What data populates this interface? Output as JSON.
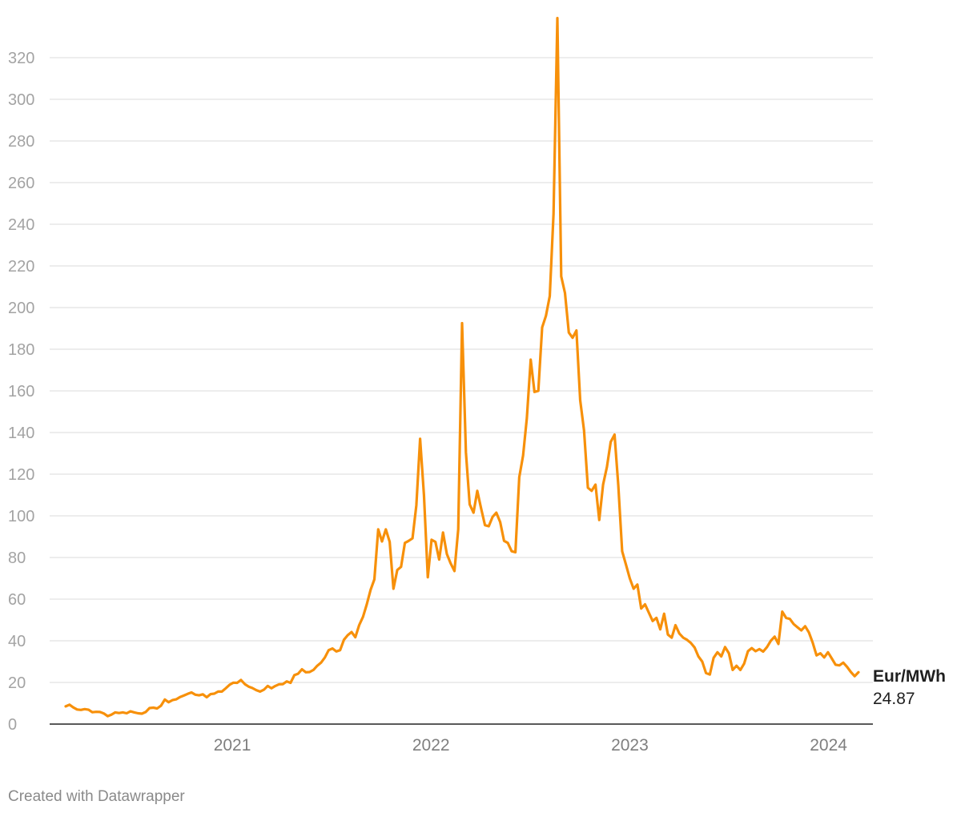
{
  "footer": {
    "credit": "Created with Datawrapper"
  },
  "chart_data": {
    "type": "line",
    "series": [
      {
        "name": "Eur/MWh",
        "color": "#f7900a",
        "last_value_label": "24.87",
        "x": [
          "2020-03-01",
          "2020-03-08",
          "2020-03-15",
          "2020-03-22",
          "2020-03-29",
          "2020-04-05",
          "2020-04-12",
          "2020-04-19",
          "2020-04-26",
          "2020-05-03",
          "2020-05-10",
          "2020-05-17",
          "2020-05-24",
          "2020-05-31",
          "2020-06-07",
          "2020-06-14",
          "2020-06-21",
          "2020-06-28",
          "2020-07-05",
          "2020-07-12",
          "2020-07-19",
          "2020-07-26",
          "2020-08-02",
          "2020-08-09",
          "2020-08-16",
          "2020-08-23",
          "2020-08-30",
          "2020-09-06",
          "2020-09-13",
          "2020-09-20",
          "2020-09-27",
          "2020-10-04",
          "2020-10-11",
          "2020-10-18",
          "2020-10-25",
          "2020-11-01",
          "2020-11-08",
          "2020-11-15",
          "2020-11-22",
          "2020-11-29",
          "2020-12-06",
          "2020-12-13",
          "2020-12-20",
          "2020-12-27",
          "2021-01-03",
          "2021-01-10",
          "2021-01-17",
          "2021-01-24",
          "2021-01-31",
          "2021-02-07",
          "2021-02-14",
          "2021-02-21",
          "2021-02-28",
          "2021-03-07",
          "2021-03-14",
          "2021-03-21",
          "2021-03-28",
          "2021-04-04",
          "2021-04-11",
          "2021-04-18",
          "2021-04-25",
          "2021-05-02",
          "2021-05-09",
          "2021-05-16",
          "2021-05-23",
          "2021-05-30",
          "2021-06-06",
          "2021-06-13",
          "2021-06-20",
          "2021-06-27",
          "2021-07-04",
          "2021-07-11",
          "2021-07-18",
          "2021-07-25",
          "2021-08-01",
          "2021-08-08",
          "2021-08-15",
          "2021-08-22",
          "2021-08-29",
          "2021-09-05",
          "2021-09-12",
          "2021-09-19",
          "2021-09-26",
          "2021-10-03",
          "2021-10-10",
          "2021-10-17",
          "2021-10-24",
          "2021-10-31",
          "2021-11-07",
          "2021-11-14",
          "2021-11-21",
          "2021-11-28",
          "2021-12-05",
          "2021-12-12",
          "2021-12-19",
          "2021-12-26",
          "2022-01-02",
          "2022-01-09",
          "2022-01-16",
          "2022-01-23",
          "2022-01-30",
          "2022-02-06",
          "2022-02-13",
          "2022-02-20",
          "2022-02-27",
          "2022-03-06",
          "2022-03-13",
          "2022-03-20",
          "2022-03-27",
          "2022-04-03",
          "2022-04-10",
          "2022-04-17",
          "2022-04-24",
          "2022-05-01",
          "2022-05-08",
          "2022-05-15",
          "2022-05-22",
          "2022-05-29",
          "2022-06-05",
          "2022-06-12",
          "2022-06-19",
          "2022-06-26",
          "2022-07-03",
          "2022-07-10",
          "2022-07-17",
          "2022-07-24",
          "2022-07-31",
          "2022-08-07",
          "2022-08-14",
          "2022-08-21",
          "2022-08-28",
          "2022-09-04",
          "2022-09-11",
          "2022-09-18",
          "2022-09-25",
          "2022-10-02",
          "2022-10-09",
          "2022-10-16",
          "2022-10-23",
          "2022-10-30",
          "2022-11-06",
          "2022-11-13",
          "2022-11-20",
          "2022-11-27",
          "2022-12-04",
          "2022-12-11",
          "2022-12-18",
          "2022-12-25",
          "2023-01-01",
          "2023-01-08",
          "2023-01-15",
          "2023-01-22",
          "2023-01-29",
          "2023-02-05",
          "2023-02-12",
          "2023-02-19",
          "2023-02-26",
          "2023-03-05",
          "2023-03-12",
          "2023-03-19",
          "2023-03-26",
          "2023-04-02",
          "2023-04-09",
          "2023-04-16",
          "2023-04-23",
          "2023-04-30",
          "2023-05-07",
          "2023-05-14",
          "2023-05-21",
          "2023-05-28",
          "2023-06-04",
          "2023-06-11",
          "2023-06-18",
          "2023-06-25",
          "2023-07-02",
          "2023-07-09",
          "2023-07-16",
          "2023-07-23",
          "2023-07-30",
          "2023-08-06",
          "2023-08-13",
          "2023-08-20",
          "2023-08-27",
          "2023-09-03",
          "2023-09-10",
          "2023-09-17",
          "2023-09-24",
          "2023-10-01",
          "2023-10-08",
          "2023-10-15",
          "2023-10-22",
          "2023-10-29",
          "2023-11-05",
          "2023-11-12",
          "2023-11-19",
          "2023-11-26",
          "2023-12-03",
          "2023-12-10",
          "2023-12-17",
          "2023-12-24",
          "2023-12-31",
          "2024-01-07",
          "2024-01-14",
          "2024-01-21",
          "2024-01-28",
          "2024-02-04",
          "2024-02-11",
          "2024-02-18",
          "2024-02-25"
        ],
        "values": [
          8.5,
          9.3,
          8,
          7,
          6.8,
          7.2,
          6.9,
          5.7,
          5.9,
          5.8,
          5.1,
          3.8,
          4.5,
          5.6,
          5.3,
          5.6,
          5.2,
          6.1,
          5.6,
          5.2,
          5,
          5.8,
          7.7,
          7.9,
          7.5,
          8.8,
          11.8,
          10.5,
          11.5,
          11.9,
          13,
          13.7,
          14.5,
          15.2,
          14.1,
          13.8,
          14.3,
          12.9,
          14.4,
          14.6,
          15.6,
          15.6,
          17.2,
          18.9,
          19.9,
          19.8,
          21.2,
          19.2,
          18,
          17.3,
          16.3,
          15.6,
          16.5,
          18.3,
          17.2,
          18.3,
          19.1,
          19.2,
          20.5,
          19.8,
          23.5,
          24.2,
          26.3,
          24.9,
          25,
          26,
          28,
          29.5,
          32,
          35.5,
          36.3,
          34.9,
          35.5,
          40.5,
          42.7,
          44.2,
          41.7,
          47.5,
          51.5,
          57.5,
          64.5,
          69.5,
          93.5,
          87.7,
          93.5,
          87.5,
          65,
          74,
          75.5,
          87,
          88,
          89.2,
          105,
          137,
          110,
          70.5,
          88.5,
          87.5,
          79,
          92,
          81.7,
          77.2,
          73.5,
          93.5,
          192.5,
          130.5,
          105.5,
          101.5,
          112,
          103.5,
          95.5,
          95,
          99.5,
          101.5,
          97,
          88,
          87,
          83,
          82.5,
          118.5,
          129,
          147,
          175,
          159.5,
          160,
          190.5,
          196,
          205.5,
          245,
          339,
          215,
          207,
          188,
          185.5,
          189,
          155.5,
          141,
          113.5,
          112,
          115,
          98,
          115,
          123.5,
          135.5,
          139,
          114.5,
          83,
          76.5,
          70,
          65,
          67,
          55.5,
          57.5,
          53.5,
          49.5,
          51,
          45.5,
          53,
          43,
          41.5,
          47.5,
          43.5,
          41.5,
          40.5,
          39,
          36.8,
          32.5,
          30,
          24.5,
          23.8,
          31.8,
          34.5,
          32.5,
          37,
          34,
          26,
          28,
          26,
          29,
          35,
          36.5,
          35,
          36,
          34.8,
          37,
          40,
          42,
          38.5,
          54,
          51,
          50.5,
          48,
          46.5,
          45,
          47,
          44,
          39,
          33,
          34,
          32,
          34.5,
          31.5,
          28.5,
          28.2,
          29.5,
          27.5,
          25,
          23,
          24.87
        ]
      }
    ],
    "x_ticks": [
      {
        "date": "2021-01-01",
        "label": "2021"
      },
      {
        "date": "2022-01-01",
        "label": "2022"
      },
      {
        "date": "2023-01-01",
        "label": "2023"
      },
      {
        "date": "2024-01-01",
        "label": "2024"
      }
    ],
    "y_ticks": [
      0,
      20,
      40,
      60,
      80,
      100,
      120,
      140,
      160,
      180,
      200,
      220,
      240,
      260,
      280,
      300,
      320
    ],
    "ylim": [
      0,
      340
    ],
    "grid": "horizontal",
    "xlabel": "",
    "ylabel": "",
    "title": ""
  }
}
